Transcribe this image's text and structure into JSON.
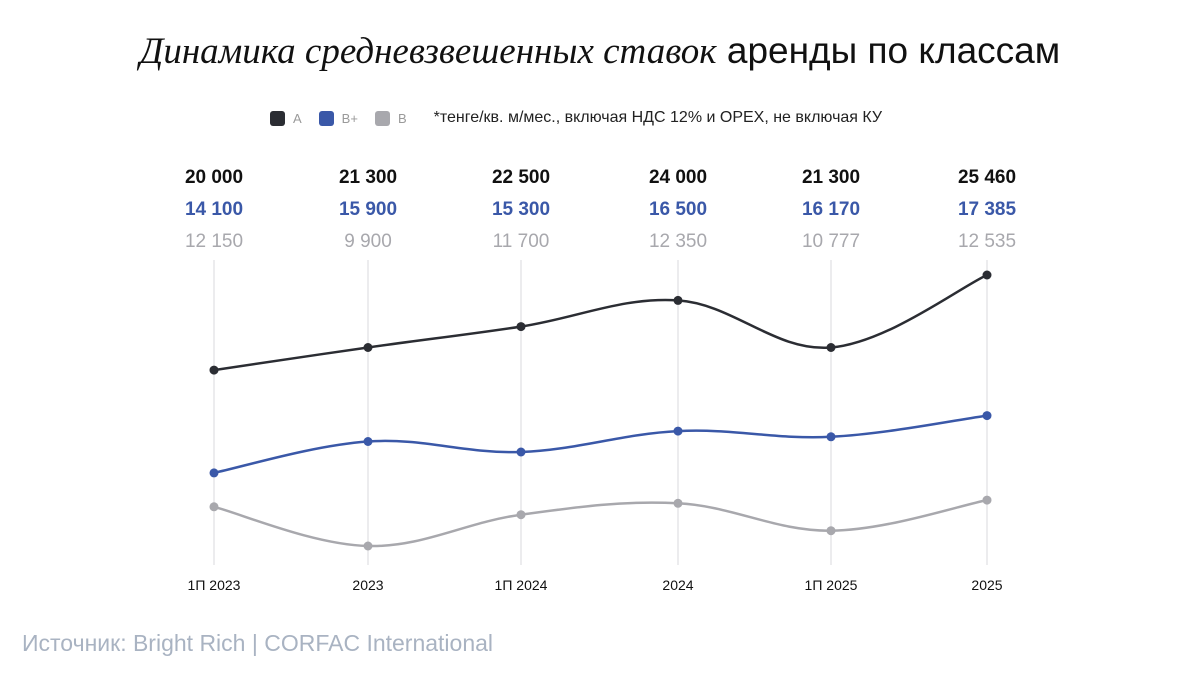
{
  "title": {
    "italic": "Динамика средневзвешенных ставок",
    "regular": "аренды по классам"
  },
  "legend": {
    "items": [
      {
        "label": "A",
        "color": "#2b2d33"
      },
      {
        "label": "B+",
        "color": "#3a58a8"
      },
      {
        "label": "B",
        "color": "#a8a8ad"
      }
    ],
    "note": "*тенге/кв. м/мес., включая НДС 12% и OPEX, не включая КУ"
  },
  "chart_data": {
    "type": "line",
    "categories": [
      "1П 2023",
      "2023",
      "1П 2024",
      "2024",
      "1П 2025",
      "2025"
    ],
    "series": [
      {
        "name": "A",
        "color": "#2b2d33",
        "values": [
          20000,
          21300,
          22500,
          24000,
          21300,
          25460
        ],
        "labels": [
          "20 000",
          "21 300",
          "22 500",
          "24 000",
          "21 300",
          "25 460"
        ]
      },
      {
        "name": "B+",
        "color": "#3a58a8",
        "values": [
          14100,
          15900,
          15300,
          16500,
          16170,
          17385
        ],
        "labels": [
          "14 100",
          "15 900",
          "15 300",
          "16 500",
          "16 170",
          "17 385"
        ]
      },
      {
        "name": "B",
        "color": "#a8a8ad",
        "values": [
          12150,
          9900,
          11700,
          12350,
          10777,
          12535
        ],
        "labels": [
          "12 150",
          "9 900",
          "11 700",
          "12 350",
          "10 777",
          "12 535"
        ]
      }
    ],
    "grid": "vertical"
  },
  "source": "Источник: Bright Rich | CORFAC International"
}
